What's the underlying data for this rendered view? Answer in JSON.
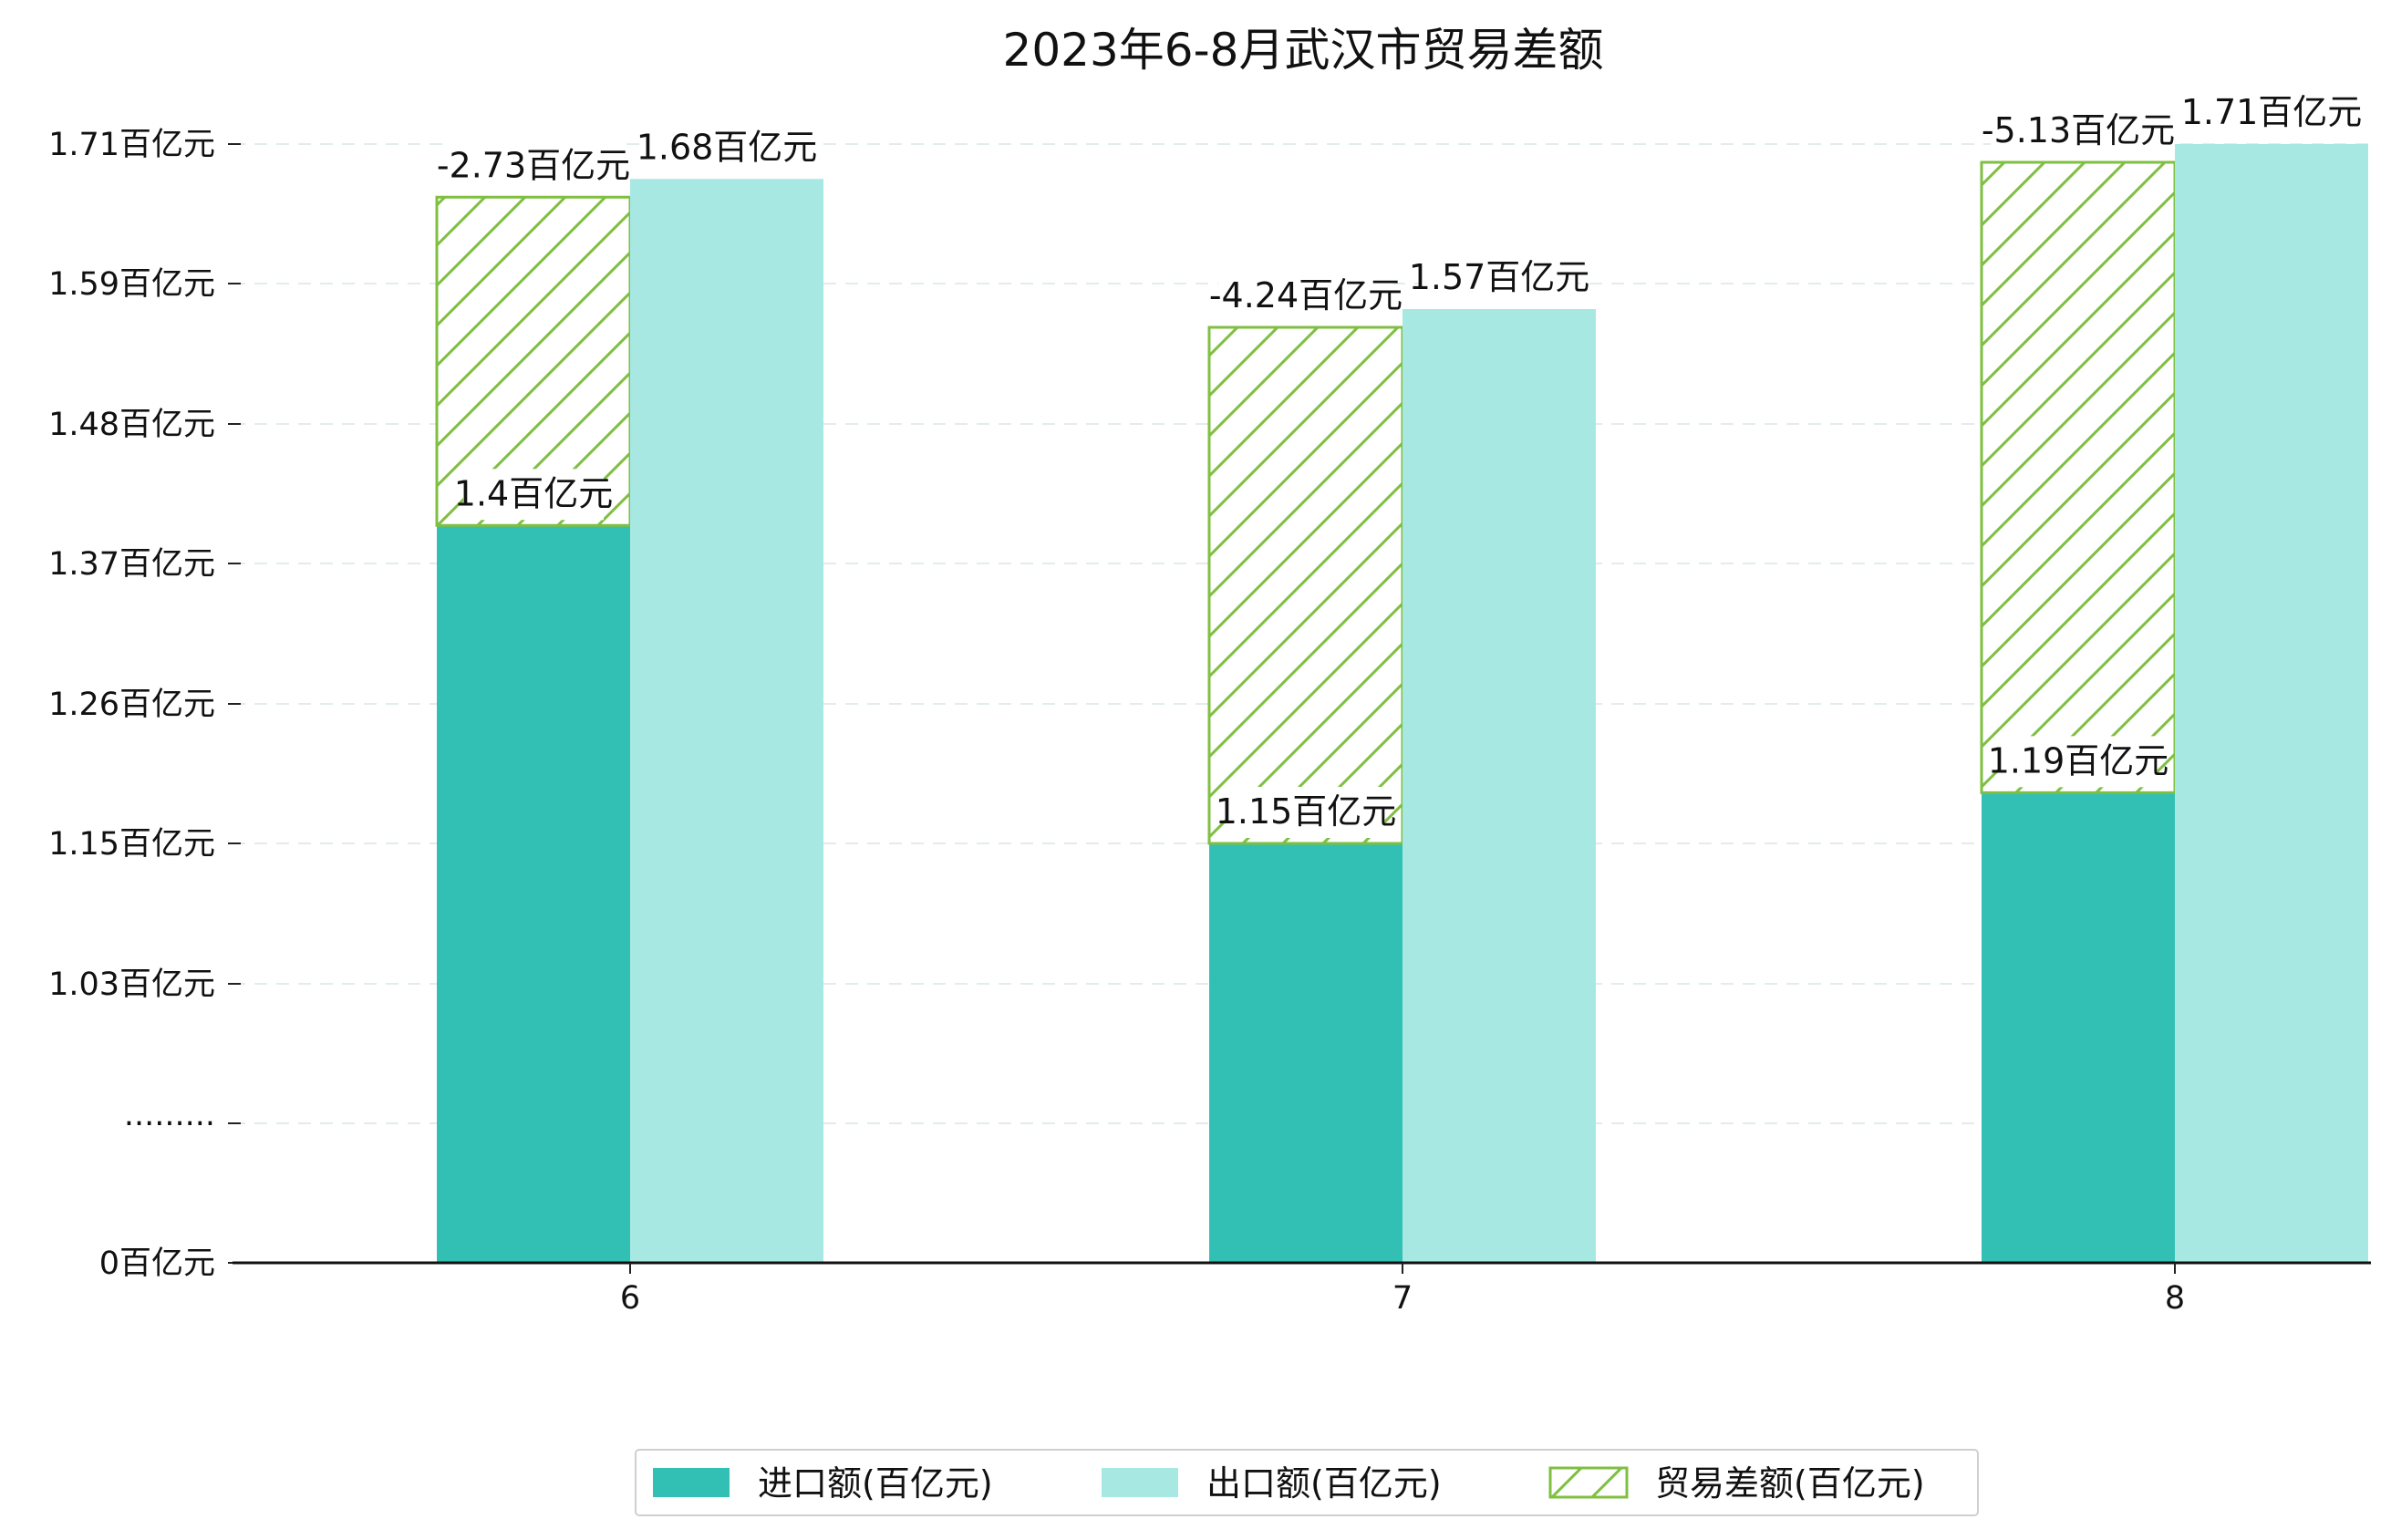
{
  "chart_data": {
    "type": "bar",
    "title": "2023年6-8月武汉市贸易差额",
    "categories": [
      "6",
      "7",
      "8"
    ],
    "y_tick_labels": [
      "0百亿元",
      "·········",
      "1.03百亿元",
      "1.15百亿元",
      "1.26百亿元",
      "1.37百亿元",
      "1.48百亿元",
      "1.59百亿元",
      "1.71百亿元"
    ],
    "y_tick_values": [
      0,
      0.92,
      1.03,
      1.15,
      1.26,
      1.37,
      1.48,
      1.59,
      1.71
    ],
    "axis_break": "·········",
    "ylim": [
      0,
      1.71
    ],
    "grid": "horizontal dashed",
    "legend_position": "bottom-center",
    "series": [
      {
        "name": "进口额(百亿元)",
        "color": "#32c0b4",
        "style": "solid",
        "values": [
          1.4,
          1.15,
          1.19
        ],
        "labels": [
          "1.4百亿元",
          "1.15百亿元",
          "1.19百亿元"
        ]
      },
      {
        "name": "出口额(百亿元)",
        "color": "#a8e8e2",
        "style": "solid",
        "values": [
          1.68,
          1.57,
          1.71
        ],
        "labels": [
          "1.68百亿元",
          "1.57百亿元",
          "1.71百亿元"
        ]
      },
      {
        "name": "贸易差额(百亿元)",
        "color": "#7fbf41",
        "style": "hatched, stacked on 进口额",
        "values": [
          -2.73,
          -4.24,
          -5.13
        ],
        "labels": [
          "-2.73百亿元",
          "-4.24百亿元",
          "-5.13百亿元"
        ]
      }
    ]
  }
}
